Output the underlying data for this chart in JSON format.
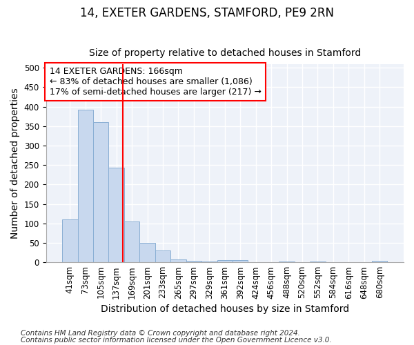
{
  "title": "14, EXETER GARDENS, STAMFORD, PE9 2RN",
  "subtitle": "Size of property relative to detached houses in Stamford",
  "xlabel": "Distribution of detached houses by size in Stamford",
  "ylabel": "Number of detached properties",
  "bar_color": "#c8d8ee",
  "bar_edge_color": "#8aafd4",
  "bin_labels": [
    "41sqm",
    "73sqm",
    "105sqm",
    "137sqm",
    "169sqm",
    "201sqm",
    "233sqm",
    "265sqm",
    "297sqm",
    "329sqm",
    "361sqm",
    "392sqm",
    "424sqm",
    "456sqm",
    "488sqm",
    "520sqm",
    "552sqm",
    "584sqm",
    "616sqm",
    "648sqm",
    "680sqm"
  ],
  "bar_heights": [
    110,
    393,
    360,
    243,
    105,
    50,
    30,
    8,
    3,
    2,
    6,
    6,
    1,
    0,
    2,
    0,
    2,
    0,
    0,
    0,
    3
  ],
  "ylim": [
    0,
    510
  ],
  "yticks": [
    0,
    50,
    100,
    150,
    200,
    250,
    300,
    350,
    400,
    450,
    500
  ],
  "annotation_text": "14 EXETER GARDENS: 166sqm\n← 83% of detached houses are smaller (1,086)\n17% of semi-detached houses are larger (217) →",
  "annotation_box_color": "white",
  "annotation_box_edge_color": "red",
  "vline_color": "red",
  "footnote1": "Contains HM Land Registry data © Crown copyright and database right 2024.",
  "footnote2": "Contains public sector information licensed under the Open Government Licence v3.0.",
  "background_color": "#ffffff",
  "plot_bg_color": "#eef2f9",
  "grid_color": "#ffffff",
  "title_fontsize": 12,
  "subtitle_fontsize": 10,
  "axis_label_fontsize": 10,
  "tick_fontsize": 8.5,
  "annotation_fontsize": 9,
  "footnote_fontsize": 7.5
}
